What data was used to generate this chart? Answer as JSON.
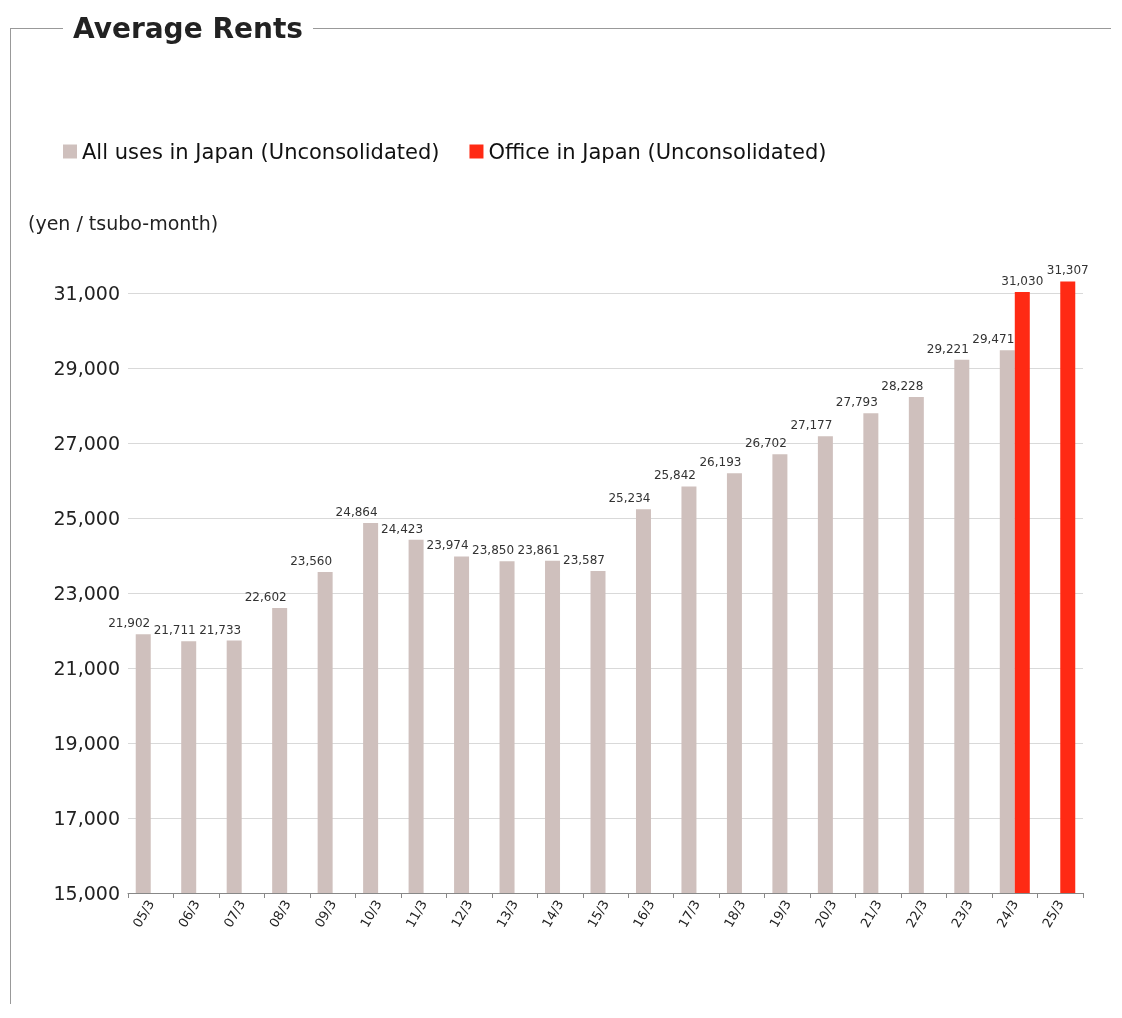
{
  "chart_data": {
    "type": "bar",
    "title": "Average Rents",
    "ylabel": "(yen / tsubo-month)",
    "categories": [
      "05/3",
      "06/3",
      "07/3",
      "08/3",
      "09/3",
      "10/3",
      "11/3",
      "12/3",
      "13/3",
      "14/3",
      "15/3",
      "16/3",
      "17/3",
      "18/3",
      "19/3",
      "20/3",
      "21/3",
      "22/3",
      "23/3",
      "24/3",
      "25/3"
    ],
    "series": [
      {
        "name": "All uses in Japan (Unconsolidated)",
        "color": "#cfc0bd",
        "values": [
          21902,
          21711,
          21733,
          22602,
          23560,
          24864,
          24423,
          23974,
          23850,
          23861,
          23587,
          25234,
          25842,
          26193,
          26702,
          27177,
          27793,
          28228,
          29221,
          29471,
          null
        ],
        "value_labels": [
          "21,902",
          "21,711",
          "21,733",
          "22,602",
          "23,560",
          "24,864",
          "24,423",
          "23,974",
          "23,850",
          "23,861",
          "23,587",
          "25,234",
          "25,842",
          "26,193",
          "26,702",
          "27,177",
          "27,793",
          "28,228",
          "29,221",
          "29,471",
          null
        ]
      },
      {
        "name": "Office in Japan (Unconsolidated)",
        "color": "#ff2a14",
        "values": [
          null,
          null,
          null,
          null,
          null,
          null,
          null,
          null,
          null,
          null,
          null,
          null,
          null,
          null,
          null,
          null,
          null,
          null,
          null,
          31030,
          31307
        ],
        "value_labels": [
          null,
          null,
          null,
          null,
          null,
          null,
          null,
          null,
          null,
          null,
          null,
          null,
          null,
          null,
          null,
          null,
          null,
          null,
          null,
          "31,030",
          "31,307"
        ]
      }
    ],
    "ylim": [
      15000,
      31400
    ],
    "yticks": [
      {
        "value": 15000,
        "label": "15,000"
      },
      {
        "value": 17000,
        "label": "17,000"
      },
      {
        "value": 19000,
        "label": "19,000"
      },
      {
        "value": 21000,
        "label": "21,000"
      },
      {
        "value": 23000,
        "label": "23,000"
      },
      {
        "value": 25000,
        "label": "25,000"
      },
      {
        "value": 27000,
        "label": "27,000"
      },
      {
        "value": 29000,
        "label": "29,000"
      },
      {
        "value": 31000,
        "label": "31,000"
      }
    ],
    "grid": "y",
    "legend": "top left"
  }
}
